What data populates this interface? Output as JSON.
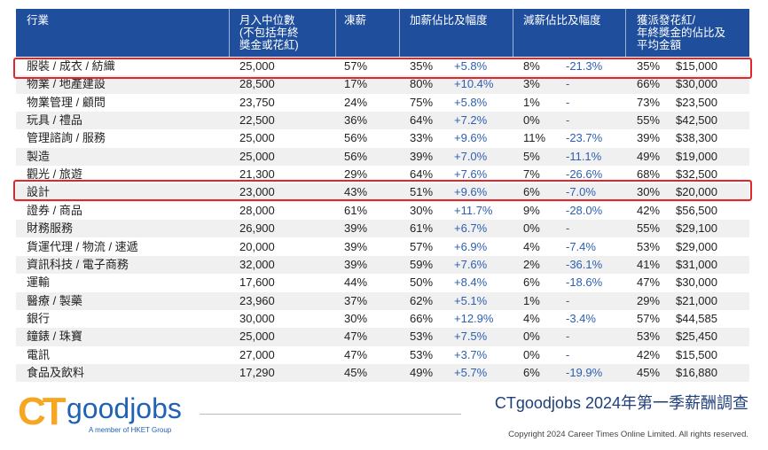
{
  "table": {
    "header": [
      "行業",
      "月入中位數\n(不包括年終\n獎金或花紅)",
      "凍薪",
      "加薪佔比及幅度",
      "減薪佔比及幅度",
      "獲派發花紅/\n年終獎金的佔比及\n平均金額"
    ],
    "rows": [
      [
        "服裝 / 成衣 / 紡織",
        "25,000",
        "57%",
        "35%",
        "+5.8%",
        "8%",
        "-21.3%",
        "35%",
        "$15,000"
      ],
      [
        "物業 / 地產建設",
        "28,500",
        "17%",
        "80%",
        "+10.4%",
        "3%",
        "-",
        "66%",
        "$30,000"
      ],
      [
        "物業管理 / 顧問",
        "23,750",
        "24%",
        "75%",
        "+5.8%",
        "1%",
        "-",
        "73%",
        "$23,500"
      ],
      [
        "玩具 / 禮品",
        "22,500",
        "36%",
        "64%",
        "+7.2%",
        "0%",
        "-",
        "55%",
        "$42,500"
      ],
      [
        "管理諮詢 / 服務",
        "25,000",
        "56%",
        "33%",
        "+9.6%",
        "11%",
        "-23.7%",
        "39%",
        "$38,300"
      ],
      [
        "製造",
        "25,000",
        "56%",
        "39%",
        "+7.0%",
        "5%",
        "-11.1%",
        "49%",
        "$19,000"
      ],
      [
        "觀光 / 旅遊",
        "21,300",
        "29%",
        "64%",
        "+7.6%",
        "7%",
        "-26.6%",
        "68%",
        "$32,500"
      ],
      [
        "設計",
        "23,000",
        "43%",
        "51%",
        "+9.6%",
        "6%",
        "-7.0%",
        "30%",
        "$20,000"
      ],
      [
        "證券 / 商品",
        "28,000",
        "61%",
        "30%",
        "+11.7%",
        "9%",
        "-28.0%",
        "42%",
        "$56,500"
      ],
      [
        "財務服務",
        "26,900",
        "39%",
        "61%",
        "+6.7%",
        "0%",
        "-",
        "55%",
        "$29,100"
      ],
      [
        "貨運代理 / 物流 / 速遞",
        "20,000",
        "39%",
        "57%",
        "+6.9%",
        "4%",
        "-7.4%",
        "53%",
        "$29,000"
      ],
      [
        "資訊科技 / 電子商務",
        "32,000",
        "39%",
        "59%",
        "+7.6%",
        "2%",
        "-36.1%",
        "41%",
        "$31,000"
      ],
      [
        "運輸",
        "17,600",
        "44%",
        "50%",
        "+8.4%",
        "6%",
        "-18.6%",
        "47%",
        "$30,000"
      ],
      [
        "醫療 / 製藥",
        "23,960",
        "37%",
        "62%",
        "+5.1%",
        "1%",
        "-",
        "29%",
        "$21,000"
      ],
      [
        "銀行",
        "30,000",
        "30%",
        "66%",
        "+12.9%",
        "4%",
        "-3.4%",
        "57%",
        "$44,585"
      ],
      [
        "鐘錶 / 珠寶",
        "25,000",
        "47%",
        "53%",
        "+7.5%",
        "0%",
        "-",
        "53%",
        "$25,450"
      ],
      [
        "電訊",
        "27,000",
        "47%",
        "53%",
        "+3.7%",
        "0%",
        "-",
        "42%",
        "$15,500"
      ],
      [
        "食品及飲料",
        "17,290",
        "45%",
        "49%",
        "+5.7%",
        "6%",
        "-19.9%",
        "45%",
        "$16,880"
      ]
    ]
  },
  "logo": {
    "ct": "CT",
    "name": "goodjobs",
    "tagline": "A member of HKET Group"
  },
  "footer": {
    "title": "CTgoodjobs 2024年第一季薪酬調查",
    "copyright": "Copyright 2024 Career Times Online Limited. All rights reserved."
  }
}
